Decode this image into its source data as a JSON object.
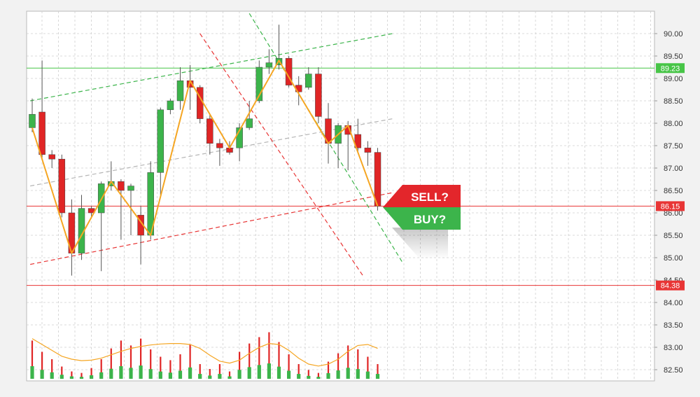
{
  "chart_data": {
    "type": "candlestick",
    "title": "",
    "xlabel": "",
    "ylabel": "",
    "ylim": [
      82.3,
      90.45
    ],
    "y_ticks": [
      "90.00",
      "89.50",
      "89.00",
      "88.50",
      "88.00",
      "87.50",
      "87.00",
      "86.50",
      "86.00",
      "85.50",
      "85.00",
      "84.50",
      "84.00",
      "83.50",
      "83.00",
      "82.50"
    ],
    "grid": true,
    "colors": {
      "up": "#3cb44b",
      "down": "#e02525",
      "zigzag": "#f5a623",
      "green_line": "#47c547",
      "red_line": "#e83535"
    },
    "candles": [
      {
        "o": 87.9,
        "c": 88.2,
        "h": 88.55,
        "l": 87.8
      },
      {
        "o": 88.25,
        "c": 87.3,
        "h": 89.4,
        "l": 87.2
      },
      {
        "o": 87.3,
        "c": 87.2,
        "h": 87.4,
        "l": 87.0
      },
      {
        "o": 87.2,
        "c": 86.0,
        "h": 87.3,
        "l": 85.9
      },
      {
        "o": 86.0,
        "c": 85.1,
        "h": 86.3,
        "l": 84.6
      },
      {
        "o": 85.1,
        "c": 86.1,
        "h": 86.4,
        "l": 84.95
      },
      {
        "o": 86.1,
        "c": 86.0,
        "h": 86.15,
        "l": 85.9
      },
      {
        "o": 86.0,
        "c": 86.65,
        "h": 86.7,
        "l": 84.7
      },
      {
        "o": 86.6,
        "c": 86.7,
        "h": 87.15,
        "l": 86.5
      },
      {
        "o": 86.7,
        "c": 86.5,
        "h": 86.75,
        "l": 85.4
      },
      {
        "o": 86.5,
        "c": 86.6,
        "h": 86.65,
        "l": 85.5
      },
      {
        "o": 85.95,
        "c": 85.5,
        "h": 86.15,
        "l": 84.85
      },
      {
        "o": 85.5,
        "c": 86.9,
        "h": 87.15,
        "l": 85.4
      },
      {
        "o": 86.9,
        "c": 88.3,
        "h": 88.35,
        "l": 86.4
      },
      {
        "o": 88.3,
        "c": 88.5,
        "h": 88.55,
        "l": 88.2
      },
      {
        "o": 88.5,
        "c": 88.95,
        "h": 89.25,
        "l": 88.3
      },
      {
        "o": 88.95,
        "c": 88.8,
        "h": 89.3,
        "l": 88.3
      },
      {
        "o": 88.8,
        "c": 88.1,
        "h": 88.85,
        "l": 88.0
      },
      {
        "o": 88.1,
        "c": 87.55,
        "h": 88.2,
        "l": 87.3
      },
      {
        "o": 87.55,
        "c": 87.45,
        "h": 87.65,
        "l": 87.05
      },
      {
        "o": 87.45,
        "c": 87.35,
        "h": 87.6,
        "l": 87.3
      },
      {
        "o": 87.45,
        "c": 87.9,
        "h": 88.0,
        "l": 87.15
      },
      {
        "o": 87.9,
        "c": 88.1,
        "h": 88.5,
        "l": 87.85
      },
      {
        "o": 88.5,
        "c": 89.25,
        "h": 89.4,
        "l": 88.45
      },
      {
        "o": 89.25,
        "c": 89.35,
        "h": 89.65,
        "l": 89.1
      },
      {
        "o": 89.3,
        "c": 89.45,
        "h": 90.2,
        "l": 89.2
      },
      {
        "o": 89.45,
        "c": 88.85,
        "h": 89.5,
        "l": 88.8
      },
      {
        "o": 88.85,
        "c": 88.7,
        "h": 89.05,
        "l": 88.4
      },
      {
        "o": 88.8,
        "c": 89.1,
        "h": 89.25,
        "l": 88.75
      },
      {
        "o": 89.1,
        "c": 88.15,
        "h": 89.25,
        "l": 88.0
      },
      {
        "o": 88.1,
        "c": 87.55,
        "h": 88.45,
        "l": 87.1
      },
      {
        "o": 87.55,
        "c": 87.95,
        "h": 88.0,
        "l": 87.0
      },
      {
        "o": 87.95,
        "c": 87.75,
        "h": 88.05,
        "l": 86.95
      },
      {
        "o": 87.75,
        "c": 87.45,
        "h": 88.1,
        "l": 87.35
      },
      {
        "o": 87.45,
        "c": 87.35,
        "h": 87.6,
        "l": 87.05
      },
      {
        "o": 87.35,
        "c": 86.15,
        "h": 87.45,
        "l": 86.05
      }
    ],
    "zigzag": [
      {
        "i": 0,
        "v": 87.9
      },
      {
        "i": 4,
        "v": 85.1
      },
      {
        "i": 8,
        "v": 86.7
      },
      {
        "i": 12,
        "v": 85.5
      },
      {
        "i": 16,
        "v": 88.95
      },
      {
        "i": 20,
        "v": 87.45
      },
      {
        "i": 25,
        "v": 89.4
      },
      {
        "i": 30,
        "v": 87.55
      },
      {
        "i": 32,
        "v": 87.95
      },
      {
        "i": 35,
        "v": 86.15
      }
    ],
    "horizontal_levels": [
      {
        "value": 89.23,
        "label": "89.23",
        "color": "#47c547"
      },
      {
        "value": 86.15,
        "label": "86.15",
        "color": "#e83535"
      },
      {
        "value": 84.38,
        "label": "84.38",
        "color": "#e83535"
      }
    ],
    "trendlines": [
      {
        "i1": -0.2,
        "v1": 88.5,
        "i2": 36.5,
        "v2": 90.0,
        "color": "#3cb44b"
      },
      {
        "i1": -0.2,
        "v1": 86.6,
        "i2": 36.5,
        "v2": 88.1,
        "color": "#b5b5b5"
      },
      {
        "i1": -0.2,
        "v1": 84.85,
        "i2": 36.5,
        "v2": 86.45,
        "color": "#e83535"
      },
      {
        "i1": 22.0,
        "v1": 90.45,
        "i2": 37.5,
        "v2": 84.9,
        "color": "#3cb44b"
      },
      {
        "i1": 17.0,
        "v1": 90.0,
        "i2": 33.5,
        "v2": 84.6,
        "color": "#e83535"
      }
    ],
    "volume": [
      {
        "v": 0.78,
        "up": true
      },
      {
        "v": 0.55,
        "up": false
      },
      {
        "v": 0.4,
        "up": false
      },
      {
        "v": 0.25,
        "up": false
      },
      {
        "v": 0.15,
        "up": true
      },
      {
        "v": 0.12,
        "up": false
      },
      {
        "v": 0.22,
        "up": true
      },
      {
        "v": 0.4,
        "up": true
      },
      {
        "v": 0.62,
        "up": true
      },
      {
        "v": 0.78,
        "up": false
      },
      {
        "v": 0.68,
        "up": false
      },
      {
        "v": 0.82,
        "up": true
      },
      {
        "v": 0.6,
        "up": false
      },
      {
        "v": 0.45,
        "up": true
      },
      {
        "v": 0.38,
        "up": false
      },
      {
        "v": 0.5,
        "up": true
      },
      {
        "v": 0.7,
        "up": false
      },
      {
        "v": 0.3,
        "up": false
      },
      {
        "v": 0.2,
        "up": false
      },
      {
        "v": 0.3,
        "up": true
      },
      {
        "v": 0.15,
        "up": false
      },
      {
        "v": 0.55,
        "up": true
      },
      {
        "v": 0.72,
        "up": false
      },
      {
        "v": 0.85,
        "up": true
      },
      {
        "v": 0.95,
        "up": false
      },
      {
        "v": 0.75,
        "up": true
      },
      {
        "v": 0.5,
        "up": false
      },
      {
        "v": 0.3,
        "up": false
      },
      {
        "v": 0.18,
        "up": false
      },
      {
        "v": 0.12,
        "up": true
      },
      {
        "v": 0.35,
        "up": false
      },
      {
        "v": 0.52,
        "up": true
      },
      {
        "v": 0.68,
        "up": false
      },
      {
        "v": 0.6,
        "up": true
      },
      {
        "v": 0.45,
        "up": false
      },
      {
        "v": 0.3,
        "up": true
      }
    ],
    "volume_ma": [
      0.82,
      0.7,
      0.58,
      0.46,
      0.4,
      0.37,
      0.38,
      0.42,
      0.49,
      0.56,
      0.62,
      0.66,
      0.69,
      0.71,
      0.72,
      0.72,
      0.7,
      0.62,
      0.48,
      0.36,
      0.32,
      0.38,
      0.52,
      0.64,
      0.72,
      0.7,
      0.58,
      0.42,
      0.3,
      0.26,
      0.3,
      0.4,
      0.56,
      0.68,
      0.7,
      0.62
    ]
  },
  "callouts": {
    "sell_label": "SELL?",
    "buy_label": "BUY?"
  }
}
